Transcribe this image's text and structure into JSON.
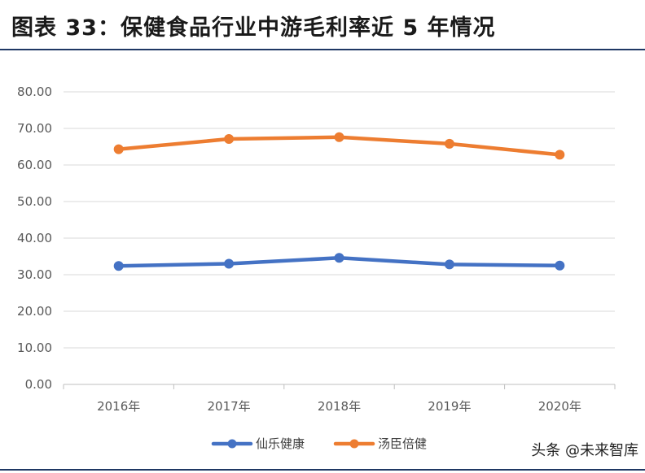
{
  "header": {
    "title": "图表 33：保健食品行业中游毛利率近 5 年情况"
  },
  "watermark": "头条 @未来智库",
  "chart_data": {
    "type": "line",
    "title": "",
    "xlabel": "",
    "ylabel": "",
    "categories": [
      "2016年",
      "2017年",
      "2018年",
      "2019年",
      "2020年"
    ],
    "ylim": [
      0,
      80
    ],
    "yticks": [
      "0.00",
      "10.00",
      "20.00",
      "30.00",
      "40.00",
      "50.00",
      "60.00",
      "70.00",
      "80.00"
    ],
    "grid": true,
    "legend_position": "bottom",
    "series": [
      {
        "name": "仙乐健康",
        "color": "#4472c4",
        "values": [
          32.4,
          33.0,
          34.6,
          32.8,
          32.5
        ]
      },
      {
        "name": "汤臣倍健",
        "color": "#ed7d31",
        "values": [
          64.3,
          67.1,
          67.6,
          65.8,
          62.8
        ]
      }
    ]
  }
}
